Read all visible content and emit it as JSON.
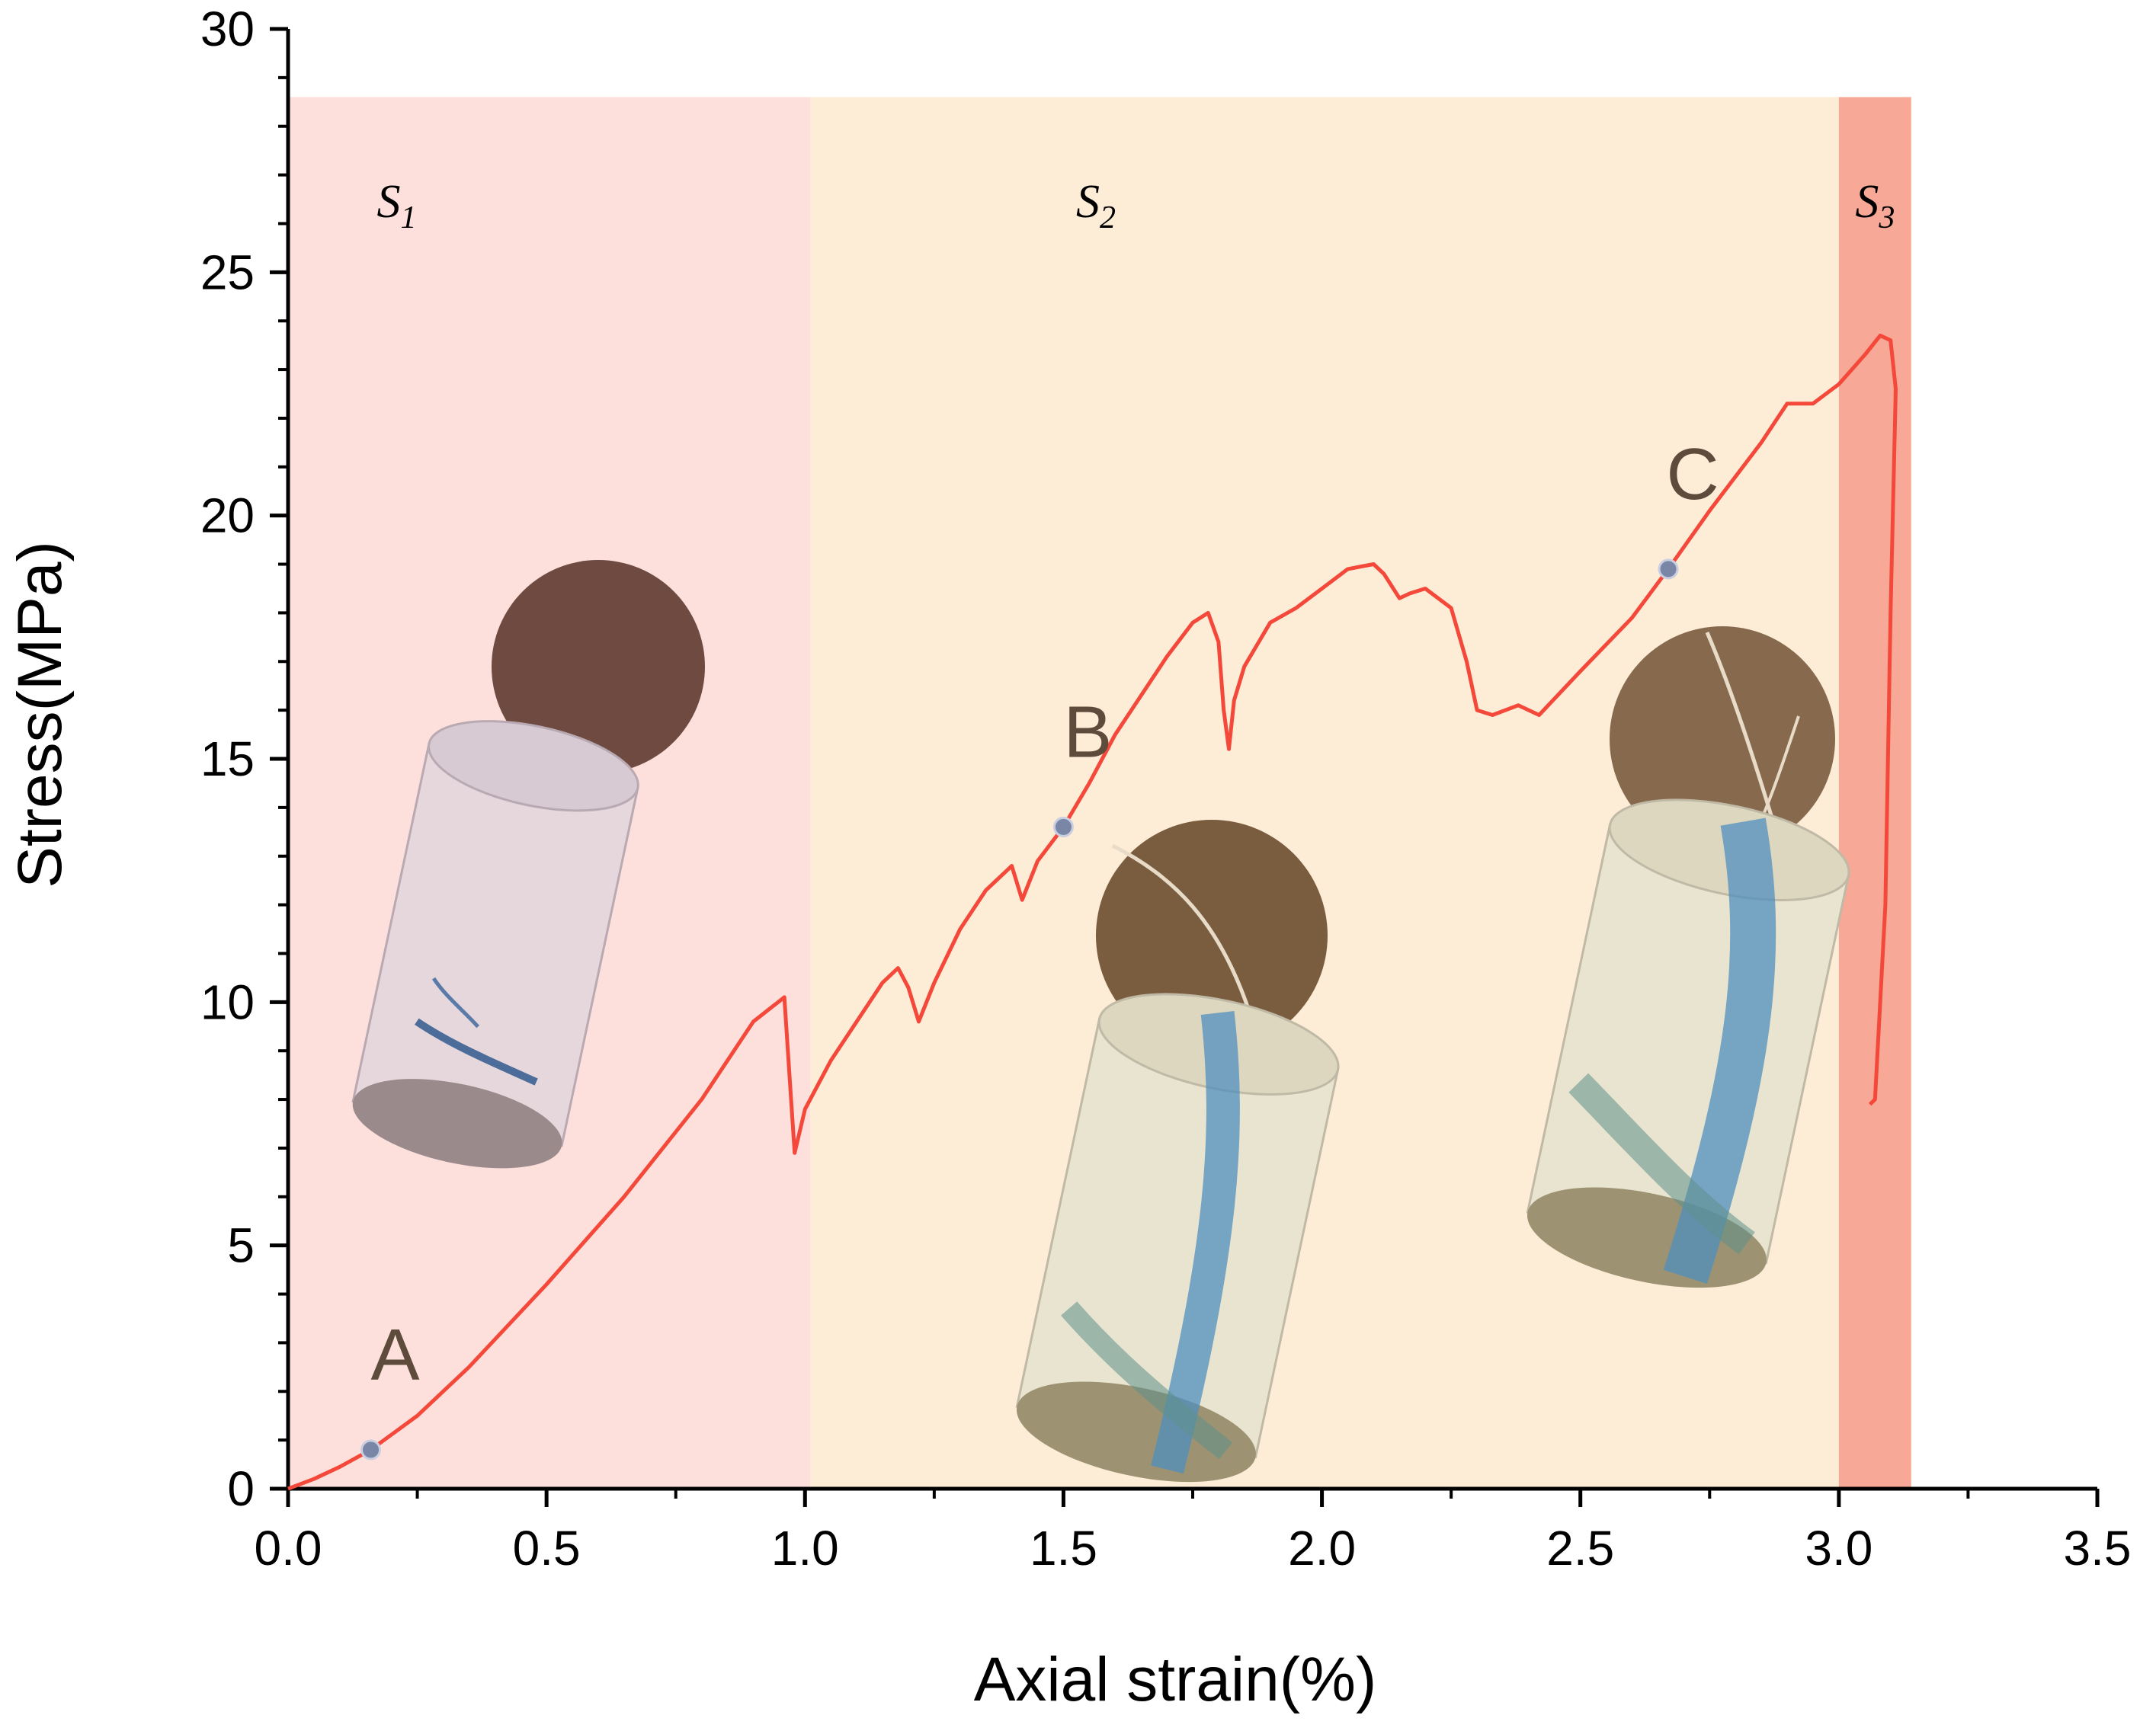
{
  "chart_data": {
    "type": "line",
    "title": "",
    "xlabel": "Axial strain(%)",
    "ylabel": "Stress(MPa)",
    "xlim": [
      0,
      3.5
    ],
    "ylim": [
      0,
      30
    ],
    "x_ticks": [
      0.0,
      0.5,
      1.0,
      1.5,
      2.0,
      2.5,
      3.0,
      3.5
    ],
    "x_tick_labels": [
      "0.0",
      "0.5",
      "1.0",
      "1.5",
      "2.0",
      "2.5",
      "3.0",
      "3.5"
    ],
    "y_ticks": [
      0,
      5,
      10,
      15,
      20,
      25,
      30
    ],
    "y_tick_labels": [
      "0",
      "5",
      "10",
      "15",
      "20",
      "25",
      "30"
    ],
    "stages": [
      {
        "name": "S",
        "sub": "1",
        "x_start": 0.0,
        "x_end": 1.01,
        "color": "#fde0dc"
      },
      {
        "name": "S",
        "sub": "2",
        "x_start": 1.01,
        "x_end": 3.0,
        "color": "#fdecd6"
      },
      {
        "name": "S",
        "sub": "3",
        "x_start": 3.0,
        "x_end": 3.14,
        "color": "#f7a897"
      }
    ],
    "stage_band_top": 28.6,
    "series": [
      {
        "name": "stress-strain",
        "color": "#f4493a",
        "x": [
          0.0,
          0.05,
          0.1,
          0.16,
          0.25,
          0.35,
          0.5,
          0.65,
          0.8,
          0.9,
          0.96,
          0.97,
          0.98,
          1.0,
          1.05,
          1.1,
          1.15,
          1.18,
          1.2,
          1.22,
          1.25,
          1.3,
          1.35,
          1.4,
          1.42,
          1.45,
          1.5,
          1.55,
          1.6,
          1.65,
          1.7,
          1.75,
          1.78,
          1.8,
          1.81,
          1.82,
          1.83,
          1.85,
          1.9,
          1.95,
          2.0,
          2.05,
          2.1,
          2.12,
          2.15,
          2.17,
          2.2,
          2.25,
          2.28,
          2.3,
          2.33,
          2.38,
          2.42,
          2.5,
          2.6,
          2.67,
          2.75,
          2.85,
          2.9,
          2.95,
          3.0,
          3.05,
          3.08,
          3.1,
          3.11,
          3.1,
          3.09,
          3.07,
          3.06
        ],
        "y": [
          0.0,
          0.2,
          0.45,
          0.8,
          1.5,
          2.5,
          4.2,
          6.0,
          8.0,
          9.6,
          10.1,
          8.5,
          6.9,
          7.8,
          8.8,
          9.6,
          10.4,
          10.7,
          10.3,
          9.6,
          10.4,
          11.5,
          12.3,
          12.8,
          12.1,
          12.9,
          13.6,
          14.5,
          15.5,
          16.3,
          17.1,
          17.8,
          18.0,
          17.4,
          16.0,
          15.2,
          16.2,
          16.9,
          17.8,
          18.1,
          18.5,
          18.9,
          19.0,
          18.8,
          18.3,
          18.4,
          18.5,
          18.1,
          17.0,
          16.0,
          15.9,
          16.1,
          15.9,
          16.8,
          17.9,
          18.9,
          20.1,
          21.5,
          22.3,
          22.3,
          22.7,
          23.3,
          23.7,
          23.6,
          22.6,
          18.0,
          12.0,
          8.0,
          7.9
        ]
      }
    ],
    "points": [
      {
        "label": "A",
        "x": 0.16,
        "y": 0.8
      },
      {
        "label": "B",
        "x": 1.5,
        "y": 13.6
      },
      {
        "label": "C",
        "x": 2.67,
        "y": 18.9
      }
    ],
    "marker_color": "#7a86a6"
  }
}
